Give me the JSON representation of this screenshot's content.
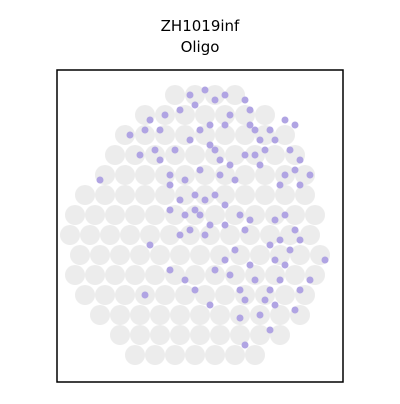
{
  "chart_data": {
    "type": "scatter",
    "title": "ZH1019inf",
    "subtitle": "Oligo",
    "xlim": [
      57,
      343
    ],
    "ylim": [
      382,
      70
    ],
    "series": [
      {
        "color": "#ececec",
        "size": 10,
        "x": [
          175,
          195,
          215,
          235,
          145,
          165,
          185,
          205,
          225,
          245,
          265,
          125,
          145,
          165,
          185,
          205,
          225,
          245,
          265,
          285,
          115,
          135,
          155,
          175,
          195,
          215,
          235,
          255,
          275,
          295,
          105,
          125,
          145,
          165,
          185,
          205,
          225,
          245,
          265,
          285,
          305,
          85,
          105,
          125,
          145,
          165,
          185,
          205,
          225,
          245,
          265,
          285,
          305,
          75,
          95,
          115,
          135,
          155,
          175,
          195,
          215,
          235,
          255,
          275,
          295,
          315,
          70,
          90,
          110,
          130,
          150,
          170,
          190,
          210,
          230,
          250,
          270,
          290,
          310,
          80,
          100,
          120,
          140,
          160,
          180,
          200,
          220,
          240,
          260,
          280,
          300,
          320,
          75,
          95,
          115,
          135,
          155,
          175,
          195,
          215,
          235,
          255,
          275,
          295,
          315,
          85,
          105,
          125,
          145,
          165,
          185,
          205,
          225,
          245,
          265,
          285,
          305,
          100,
          120,
          140,
          160,
          180,
          200,
          220,
          240,
          260,
          280,
          300,
          120,
          140,
          160,
          180,
          200,
          220,
          240,
          260,
          280,
          135,
          155,
          175,
          195,
          215,
          235,
          255
        ],
        "values": [
          95,
          95,
          95,
          95,
          115,
          115,
          115,
          115,
          115,
          115,
          115,
          135,
          135,
          135,
          135,
          135,
          135,
          135,
          135,
          135,
          155,
          155,
          155,
          155,
          155,
          155,
          155,
          155,
          155,
          155,
          175,
          175,
          175,
          175,
          175,
          175,
          175,
          175,
          175,
          175,
          175,
          195,
          195,
          195,
          195,
          195,
          195,
          195,
          195,
          195,
          195,
          195,
          195,
          215,
          215,
          215,
          215,
          215,
          215,
          215,
          215,
          215,
          215,
          215,
          215,
          215,
          235,
          235,
          235,
          235,
          235,
          235,
          235,
          235,
          235,
          235,
          235,
          235,
          235,
          255,
          255,
          255,
          255,
          255,
          255,
          255,
          255,
          255,
          255,
          255,
          255,
          255,
          275,
          275,
          275,
          275,
          275,
          275,
          275,
          275,
          275,
          275,
          275,
          275,
          275,
          295,
          295,
          295,
          295,
          295,
          295,
          295,
          295,
          295,
          295,
          295,
          295,
          315,
          315,
          315,
          315,
          315,
          315,
          315,
          315,
          315,
          315,
          315,
          335,
          335,
          335,
          335,
          335,
          335,
          335,
          335,
          335,
          355,
          355,
          355,
          355,
          355,
          355,
          355
        ]
      },
      {
        "color": "#b0a4e3",
        "size": 3.5,
        "x": [
          190,
          205,
          215,
          225,
          245,
          250,
          195,
          180,
          165,
          150,
          130,
          145,
          160,
          155,
          140,
          175,
          190,
          200,
          210,
          225,
          230,
          250,
          255,
          260,
          265,
          255,
          260,
          245,
          270,
          275,
          285,
          295,
          290,
          300,
          295,
          285,
          300,
          310,
          280,
          235,
          230,
          220,
          215,
          210,
          220,
          200,
          185,
          170,
          160,
          100,
          195,
          205,
          215,
          225,
          200,
          210,
          195,
          185,
          170,
          180,
          190,
          205,
          225,
          240,
          250,
          275,
          285,
          295,
          300,
          290,
          280,
          270,
          275,
          285,
          280,
          270,
          265,
          275,
          260,
          270,
          295,
          300,
          310,
          245,
          235,
          230,
          240,
          245,
          255,
          250,
          225,
          215,
          195,
          185,
          170,
          150,
          145,
          210,
          240,
          245,
          325,
          180,
          170
        ],
        "values": [
          95,
          90,
          100,
          95,
          100,
          110,
          105,
          110,
          115,
          120,
          135,
          130,
          130,
          150,
          155,
          150,
          140,
          130,
          125,
          125,
          115,
          125,
          130,
          140,
          150,
          155,
          165,
          155,
          130,
          140,
          120,
          125,
          150,
          160,
          170,
          175,
          185,
          175,
          185,
          180,
          165,
          160,
          150,
          145,
          175,
          170,
          180,
          175,
          160,
          180,
          195,
          200,
          195,
          205,
          215,
          225,
          210,
          215,
          210,
          235,
          230,
          235,
          225,
          215,
          220,
          220,
          215,
          230,
          240,
          250,
          240,
          245,
          260,
          265,
          280,
          290,
          300,
          305,
          315,
          330,
          310,
          290,
          280,
          230,
          250,
          275,
          290,
          300,
          280,
          265,
          260,
          270,
          290,
          280,
          270,
          245,
          295,
          305,
          318,
          345,
          260,
          200,
          185
        ]
      }
    ]
  }
}
